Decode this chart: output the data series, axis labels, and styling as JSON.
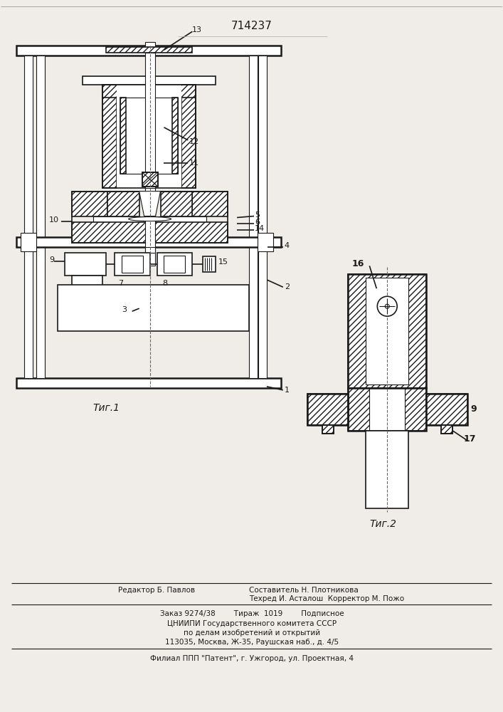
{
  "title": "714237",
  "fig1_label": "Τиг.1",
  "fig2_label": "Τиг.2",
  "bottom_text_editor": "Редактор Б. Павлов",
  "bottom_text_line1": "Составитель Н. Плотникова",
  "bottom_text_tech": "Техред И. Асталош  Корректор М. Пожо",
  "bottom_text_order": "Заказ 9274/38        Тираж  1019        Подписное",
  "bottom_text_org": "ЦНИИПИ Государственного комитета СССР",
  "bottom_text_org2": "по делам изобретений и открытий",
  "bottom_text_addr": "113035, Москва, Ж-35, Раушская наб., д. 4/5",
  "bottom_text_filial": "Филиал ППП \"Патент\", г. Ужгород, ул. Проектная, 4",
  "bg_color": "#f0ede8",
  "line_color": "#1a1a1a"
}
